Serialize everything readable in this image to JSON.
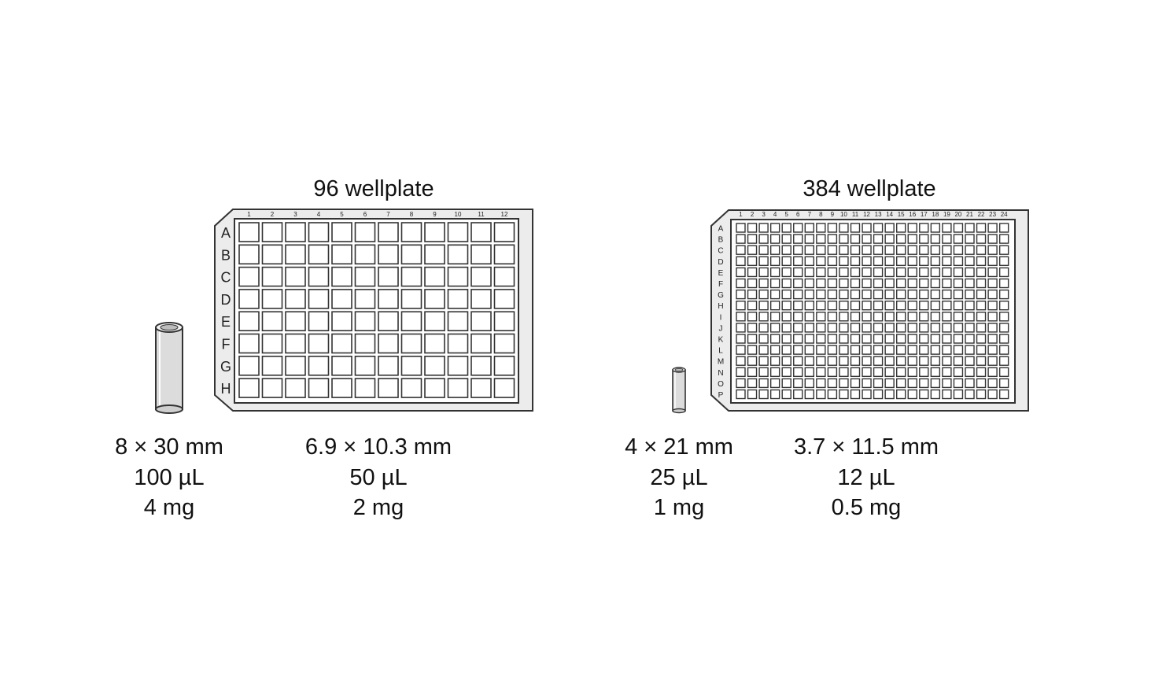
{
  "plate96": {
    "title": "96 wellplate",
    "columns": [
      "1",
      "2",
      "3",
      "4",
      "5",
      "6",
      "7",
      "8",
      "9",
      "10",
      "11",
      "12"
    ],
    "rows": [
      "A",
      "B",
      "C",
      "D",
      "E",
      "F",
      "G",
      "H"
    ],
    "well_spec": [
      "6.9 × 10.3 mm",
      "50 µL",
      "2 mg"
    ],
    "tube_spec": [
      "8 × 30 mm",
      "100 µL",
      "4 mg"
    ]
  },
  "plate384": {
    "title": "384 wellplate",
    "columns": [
      "1",
      "2",
      "3",
      "4",
      "5",
      "6",
      "7",
      "8",
      "9",
      "10",
      "11",
      "12",
      "13",
      "14",
      "15",
      "16",
      "17",
      "18",
      "19",
      "20",
      "21",
      "22",
      "23",
      "24"
    ],
    "rows": [
      "A",
      "B",
      "C",
      "D",
      "E",
      "F",
      "G",
      "H",
      "I",
      "J",
      "K",
      "L",
      "M",
      "N",
      "O",
      "P"
    ],
    "well_spec": [
      "3.7 × 11.5 mm",
      "12 µL",
      "0.5 mg"
    ],
    "tube_spec": [
      "4 × 21 mm",
      "25 µL",
      "1 mg"
    ]
  },
  "colors": {
    "plate_fill": "#ececec",
    "outline": "#333333",
    "well_fill": "#ffffff",
    "tube_fill": "#dcdcdc"
  }
}
